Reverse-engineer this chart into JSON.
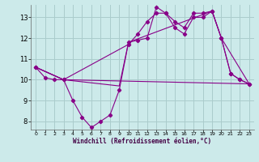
{
  "bg_color": "#cceaea",
  "grid_color": "#aacccc",
  "line_color": "#880088",
  "xlabel": "Windchill (Refroidissement éolien,°C)",
  "xlim": [
    -0.5,
    23.5
  ],
  "ylim": [
    7.6,
    13.6
  ],
  "yticks": [
    8,
    9,
    10,
    11,
    12,
    13
  ],
  "xticks": [
    0,
    1,
    2,
    3,
    4,
    5,
    6,
    7,
    8,
    9,
    10,
    11,
    12,
    13,
    14,
    15,
    16,
    17,
    18,
    19,
    20,
    21,
    22,
    23
  ],
  "line1_x": [
    0,
    1,
    2,
    3,
    4,
    5,
    6,
    7,
    8,
    9,
    10,
    11,
    12,
    13,
    14,
    15,
    16,
    17,
    18,
    19,
    20,
    21,
    22,
    23
  ],
  "line1_y": [
    10.6,
    10.1,
    10.0,
    10.0,
    9.0,
    8.2,
    7.7,
    8.0,
    8.3,
    9.5,
    11.8,
    11.9,
    12.0,
    13.5,
    13.2,
    12.5,
    12.2,
    13.0,
    13.0,
    13.3,
    12.0,
    10.3,
    10.0,
    9.8
  ],
  "line2_x": [
    0,
    3,
    10,
    11,
    12,
    13,
    14,
    15,
    16,
    17,
    18,
    19,
    20,
    21,
    22,
    23
  ],
  "line2_y": [
    10.6,
    10.0,
    11.7,
    12.2,
    12.8,
    13.2,
    13.2,
    12.8,
    12.5,
    13.2,
    13.2,
    13.3,
    12.0,
    10.3,
    10.0,
    9.8
  ],
  "line3_x": [
    0,
    3,
    23
  ],
  "line3_y": [
    10.6,
    10.0,
    9.8
  ],
  "line4_x": [
    0,
    3,
    9,
    10,
    19,
    20,
    23
  ],
  "line4_y": [
    10.6,
    10.0,
    9.7,
    11.8,
    13.3,
    12.0,
    9.8
  ]
}
